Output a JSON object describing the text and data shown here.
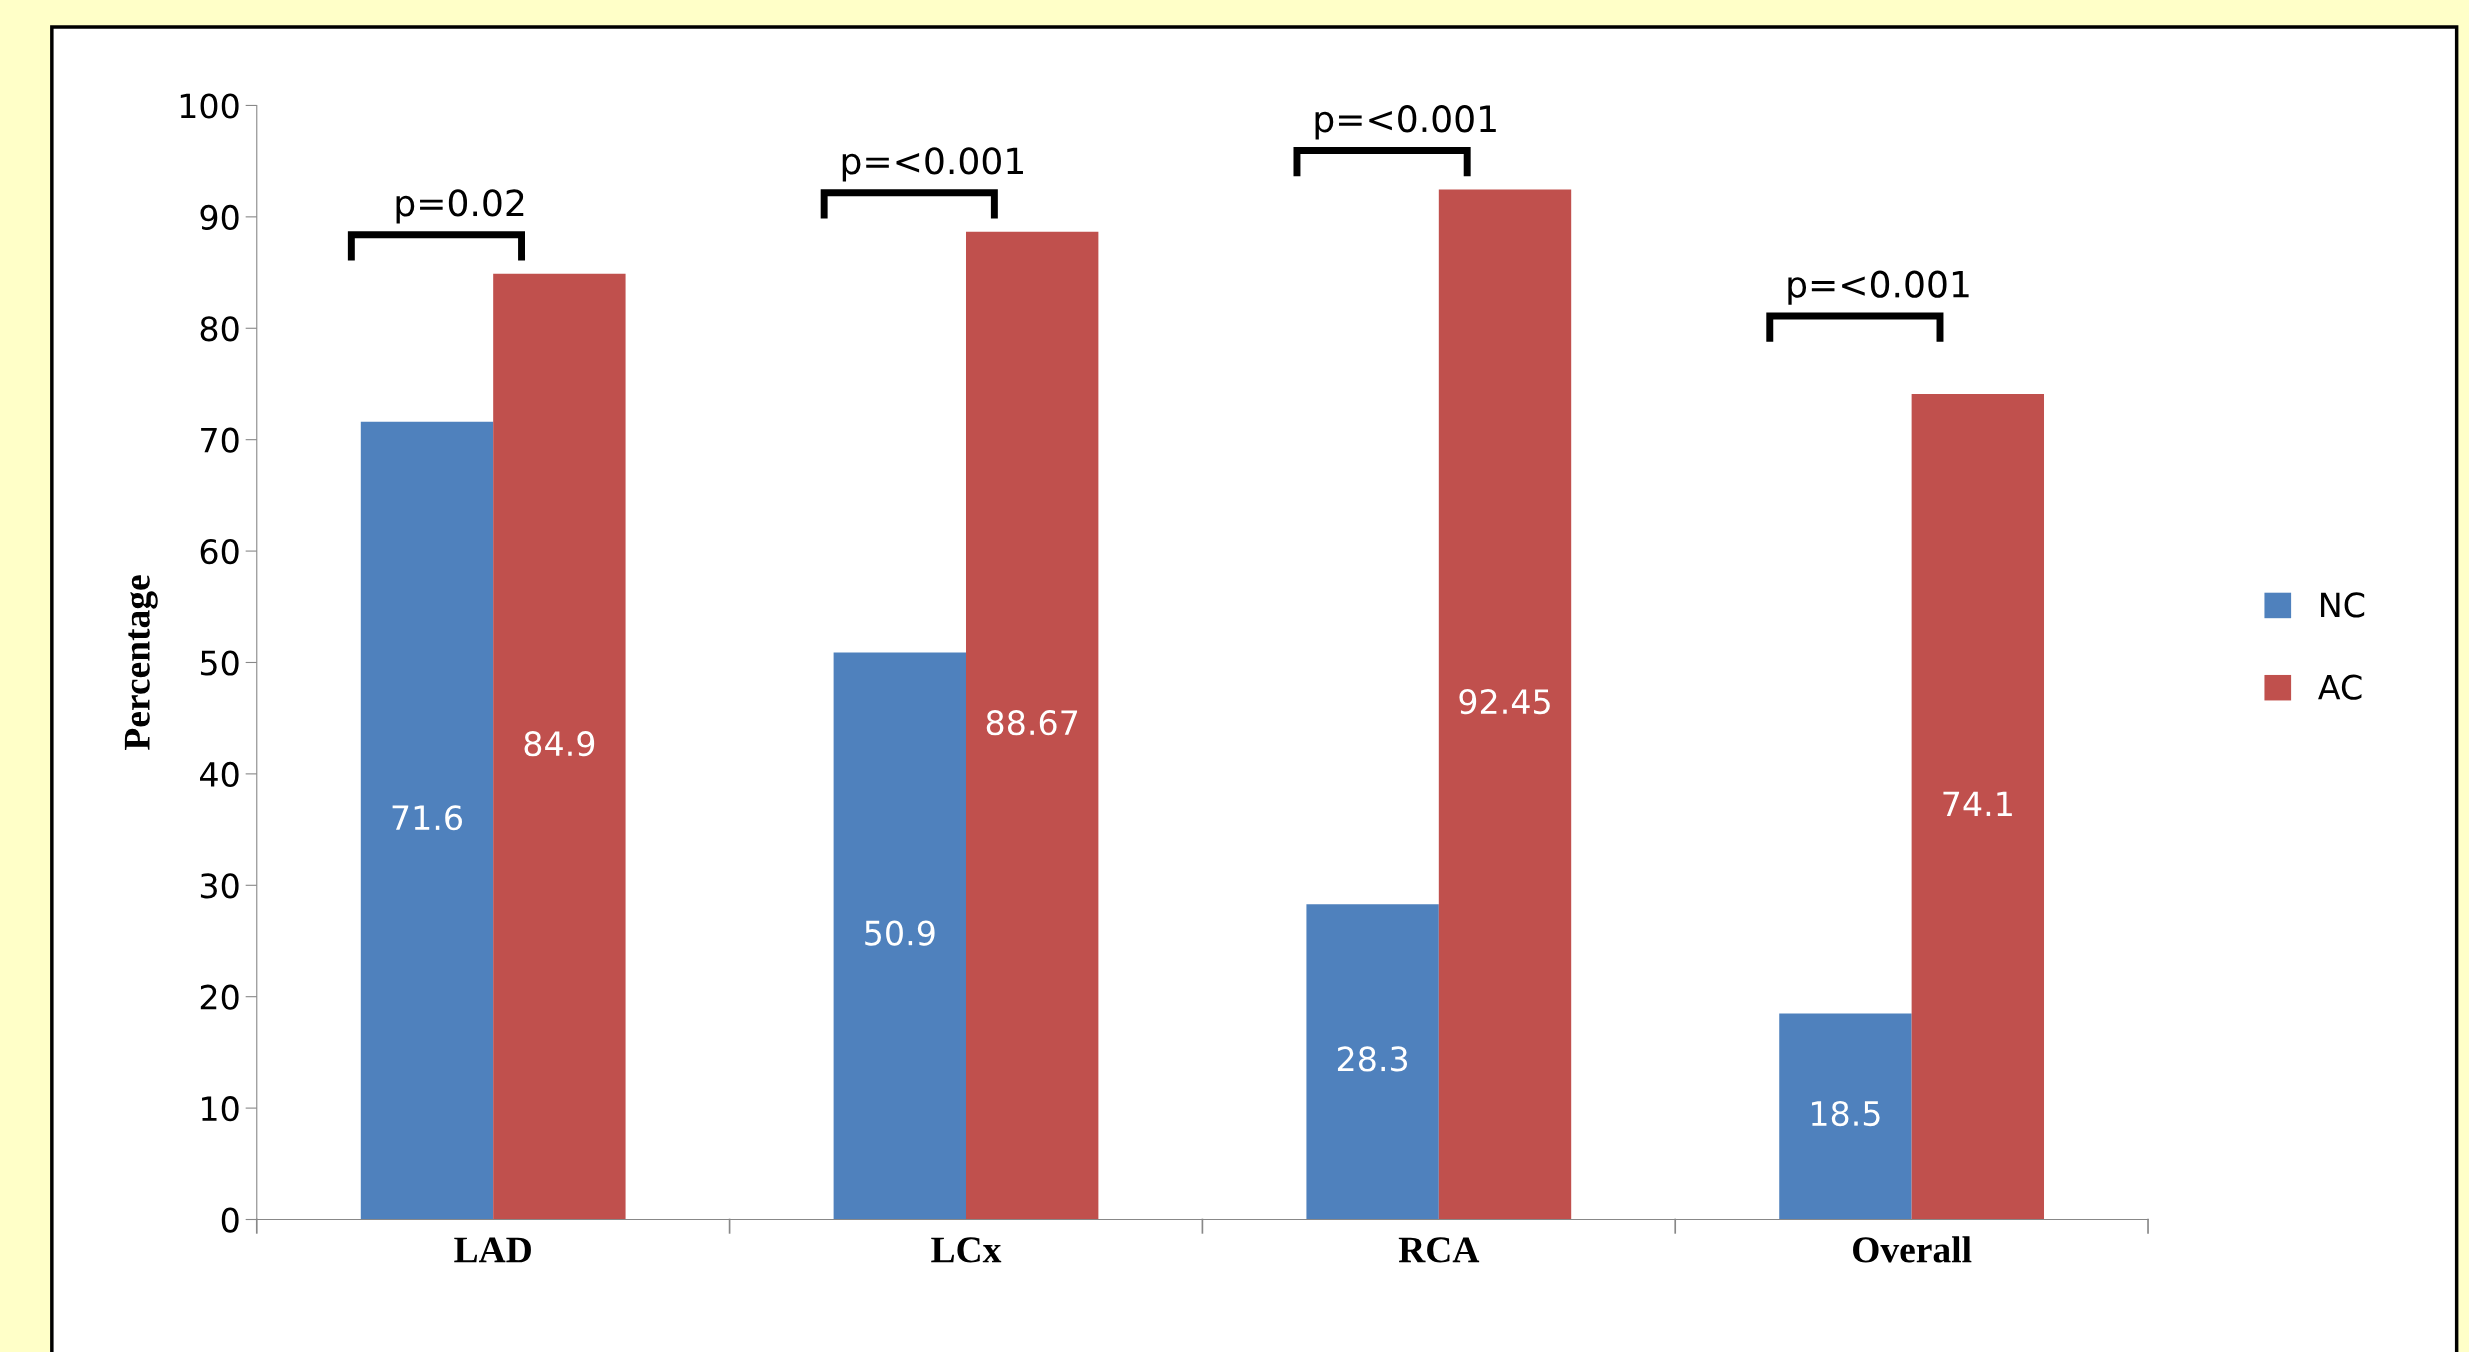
{
  "chart_data": {
    "type": "bar",
    "ylabel": "Percentage",
    "categories": [
      "LAD",
      "LCx",
      "RCA",
      "Overall"
    ],
    "series": [
      {
        "name": "NC",
        "color": "#4f81bd",
        "values": [
          71.6,
          50.9,
          28.3,
          18.5
        ]
      },
      {
        "name": "AC",
        "color": "#c0504d",
        "values": [
          84.9,
          88.67,
          92.45,
          74.1
        ]
      }
    ],
    "ylim": [
      0,
      100
    ],
    "yticks": [
      0,
      10,
      20,
      30,
      40,
      50,
      60,
      70,
      80,
      90,
      100
    ],
    "data_labels": true,
    "legend": "right",
    "grid": false,
    "annotations": [
      "p=0.02",
      "p=<0.001",
      "p=<0.001",
      "p=<0.001"
    ]
  }
}
